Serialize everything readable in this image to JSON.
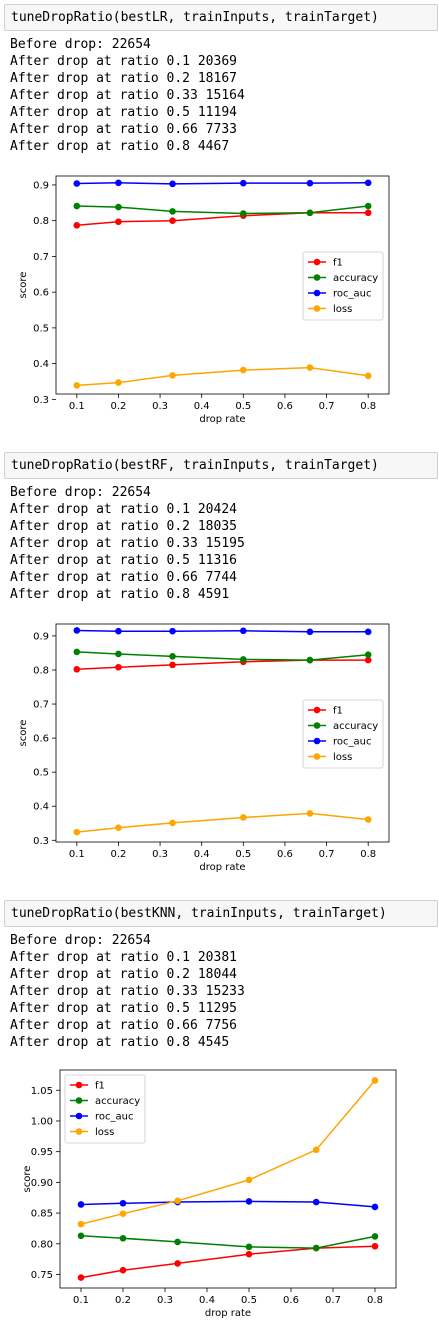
{
  "cells": [
    {
      "code": "tuneDropRatio(bestLR, trainInputs, trainTarget)",
      "output_lines": [
        "Before drop: 22654",
        "After drop at ratio 0.1 20369",
        "After drop at ratio 0.2 18167",
        "After drop at ratio 0.33 15164",
        "After drop at ratio 0.5 11194",
        "After drop at ratio 0.66 7733",
        "After drop at ratio 0.8 4467"
      ]
    },
    {
      "code": "tuneDropRatio(bestRF, trainInputs, trainTarget)",
      "output_lines": [
        "Before drop: 22654",
        "After drop at ratio 0.1 20424",
        "After drop at ratio 0.2 18035",
        "After drop at ratio 0.33 15195",
        "After drop at ratio 0.5 11316",
        "After drop at ratio 0.66 7744",
        "After drop at ratio 0.8 4591"
      ]
    },
    {
      "code": "tuneDropRatio(bestKNN, trainInputs, trainTarget)",
      "output_lines": [
        "Before drop: 22654",
        "After drop at ratio 0.1 20381",
        "After drop at ratio 0.2 18044",
        "After drop at ratio 0.33 15233",
        "After drop at ratio 0.5 11295",
        "After drop at ratio 0.66 7756",
        "After drop at ratio 0.8 4545"
      ]
    }
  ],
  "chart_data": [
    {
      "type": "line",
      "xlabel": "drop rate",
      "ylabel": "score",
      "x": [
        0.1,
        0.2,
        0.33,
        0.5,
        0.66,
        0.8
      ],
      "xlim": [
        0.05,
        0.85
      ],
      "ylim": [
        0.315,
        0.925
      ],
      "xticks": [
        0.1,
        0.2,
        0.3,
        0.4,
        0.5,
        0.6,
        0.7,
        0.8
      ],
      "yticks": [
        0.3,
        0.4,
        0.5,
        0.6,
        0.7,
        0.8,
        0.9
      ],
      "ytick_decimals": 1,
      "legend": "center-right",
      "series": [
        {
          "name": "f1",
          "color": "#ff0000",
          "values": [
            0.787,
            0.797,
            0.8,
            0.814,
            0.822,
            0.822
          ]
        },
        {
          "name": "accuracy",
          "color": "#008000",
          "values": [
            0.841,
            0.838,
            0.826,
            0.82,
            0.822,
            0.841
          ]
        },
        {
          "name": "roc_auc",
          "color": "#0000ff",
          "values": [
            0.904,
            0.906,
            0.903,
            0.905,
            0.905,
            0.906
          ]
        },
        {
          "name": "loss",
          "color": "#ffa500",
          "values": [
            0.339,
            0.347,
            0.367,
            0.382,
            0.389,
            0.366
          ]
        }
      ]
    },
    {
      "type": "line",
      "xlabel": "drop rate",
      "ylabel": "score",
      "x": [
        0.1,
        0.2,
        0.33,
        0.5,
        0.66,
        0.8
      ],
      "xlim": [
        0.05,
        0.85
      ],
      "ylim": [
        0.295,
        0.935
      ],
      "xticks": [
        0.1,
        0.2,
        0.3,
        0.4,
        0.5,
        0.6,
        0.7,
        0.8
      ],
      "yticks": [
        0.3,
        0.4,
        0.5,
        0.6,
        0.7,
        0.8,
        0.9
      ],
      "ytick_decimals": 1,
      "legend": "center-right",
      "series": [
        {
          "name": "f1",
          "color": "#ff0000",
          "values": [
            0.802,
            0.808,
            0.815,
            0.824,
            0.829,
            0.829
          ]
        },
        {
          "name": "accuracy",
          "color": "#008000",
          "values": [
            0.853,
            0.847,
            0.84,
            0.831,
            0.829,
            0.845
          ]
        },
        {
          "name": "roc_auc",
          "color": "#0000ff",
          "values": [
            0.916,
            0.914,
            0.914,
            0.915,
            0.912,
            0.912
          ]
        },
        {
          "name": "loss",
          "color": "#ffa500",
          "values": [
            0.324,
            0.337,
            0.351,
            0.367,
            0.379,
            0.361
          ]
        }
      ]
    },
    {
      "type": "line",
      "xlabel": "drop rate",
      "ylabel": "score",
      "x": [
        0.1,
        0.2,
        0.33,
        0.5,
        0.66,
        0.8
      ],
      "xlim": [
        0.05,
        0.85
      ],
      "ylim": [
        0.728,
        1.083
      ],
      "xticks": [
        0.1,
        0.2,
        0.3,
        0.4,
        0.5,
        0.6,
        0.7,
        0.8
      ],
      "yticks": [
        0.75,
        0.8,
        0.85,
        0.9,
        0.95,
        1.0,
        1.05
      ],
      "ytick_decimals": 2,
      "legend": "top-left",
      "series": [
        {
          "name": "f1",
          "color": "#ff0000",
          "values": [
            0.745,
            0.757,
            0.768,
            0.783,
            0.793,
            0.796
          ]
        },
        {
          "name": "accuracy",
          "color": "#008000",
          "values": [
            0.813,
            0.809,
            0.803,
            0.795,
            0.793,
            0.812
          ]
        },
        {
          "name": "roc_auc",
          "color": "#0000ff",
          "values": [
            0.864,
            0.866,
            0.868,
            0.869,
            0.868,
            0.86
          ]
        },
        {
          "name": "loss",
          "color": "#ffa500",
          "values": [
            0.832,
            0.849,
            0.87,
            0.904,
            0.953,
            1.066
          ]
        }
      ]
    }
  ]
}
